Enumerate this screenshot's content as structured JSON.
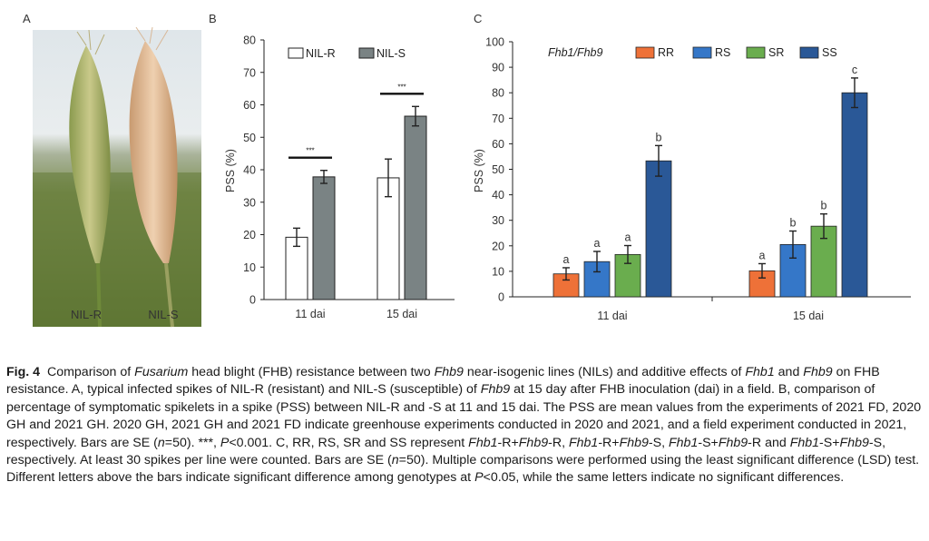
{
  "panel_a": {
    "label": "A",
    "left_label": "NIL-R",
    "right_label": "NIL-S"
  },
  "chart_data": [
    {
      "panel": "B",
      "type": "bar",
      "ylabel": "PSS (%)",
      "ylim": [
        0,
        80
      ],
      "yticks": [
        0,
        10,
        20,
        30,
        40,
        50,
        60,
        70,
        80
      ],
      "categories": [
        "11 dai",
        "15 dai"
      ],
      "series": [
        {
          "name": "NIL-R",
          "values": [
            19.2,
            37.5
          ],
          "errors": [
            2.8,
            5.8
          ],
          "color": "#ffffff"
        },
        {
          "name": "NIL-S",
          "values": [
            37.8,
            56.5
          ],
          "errors": [
            2.0,
            3.0
          ],
          "color": "#7a8384"
        }
      ],
      "annotations": [
        "***",
        "***"
      ]
    },
    {
      "panel": "C",
      "type": "bar",
      "ylabel": "PSS (%)",
      "ylim": [
        0,
        100
      ],
      "yticks": [
        0,
        10,
        20,
        30,
        40,
        50,
        60,
        70,
        80,
        90,
        100
      ],
      "legend_title": "Fhb1/Fhb9",
      "categories": [
        "11 dai",
        "15 dai"
      ],
      "series": [
        {
          "name": "RR",
          "values": [
            9.0,
            10.2
          ],
          "errors": [
            2.4,
            2.8
          ],
          "letters": [
            "a",
            "a"
          ],
          "color": "#ee7138"
        },
        {
          "name": "RS",
          "values": [
            13.8,
            20.5
          ],
          "errors": [
            4.0,
            5.3
          ],
          "letters": [
            "a",
            "b"
          ],
          "color": "#3577c8"
        },
        {
          "name": "SR",
          "values": [
            16.6,
            27.7
          ],
          "errors": [
            3.5,
            4.8
          ],
          "letters": [
            "a",
            "b"
          ],
          "color": "#6aad4e"
        },
        {
          "name": "SS",
          "values": [
            53.3,
            80.0
          ],
          "errors": [
            6.0,
            5.8
          ],
          "letters": [
            "b",
            "c"
          ],
          "color": "#2a5897"
        }
      ]
    }
  ],
  "caption": {
    "fig_label": "Fig. 4",
    "p1_a": "Comparison of ",
    "p1_i1": "Fusarium",
    "p1_b": " head blight (FHB) resistance between two ",
    "p1_i2": "Fhb9",
    "p1_c": " near-isogenic lines (NILs) and additive effects of ",
    "p1_i3": "Fhb1",
    "p1_d": " and ",
    "p1_i4": "Fhb9",
    "p1_e": " on FHB resistance.  A, typical infected spikes of NIL-R (resistant) and NIL-S (susceptible) of ",
    "p1_i5": "Fhb9",
    "p1_f": " at 15 day after FHB inoculation (dai) in a field.  B, comparison of percentage of symptomatic spikelets in a spike (PSS) between NIL-R and -S at 11 and 15 dai.  The PSS are mean values from the experiments of 2021 FD, 2020 GH and 2021 GH.  2020 GH, 2021 GH and 2021 FD indicate greenhouse experiments conducted in 2020 and 2021, and a field experiment conducted in 2021, respectively.  Bars are SE (",
    "p1_i6": "n",
    "p1_g": "=50).  ***, ",
    "p1_i7": "P",
    "p1_h": "<0.001.  C, RR, RS, SR and SS represent ",
    "p1_i8": "Fhb1",
    "p1_j": "-R+",
    "p1_i9": "Fhb9",
    "p1_k": "-R, ",
    "p1_i10": "Fhb1",
    "p1_l": "-R+",
    "p1_i11": "Fhb9",
    "p1_m": "-S, ",
    "p1_i12": "Fhb1",
    "p1_n": "-S+",
    "p1_i13": "Fhb9",
    "p1_o": "-R and ",
    "p1_i14": "Fhb1",
    "p1_p": "-S+",
    "p1_i15": "Fhb9",
    "p1_q": "-S, respectively.  At least 30 spikes per line were counted.  Bars are SE (",
    "p1_i16": "n",
    "p1_r": "=50).  Multiple comparisons were performed using the least significant difference (LSD) test.  Different letters above the bars indicate significant difference among genotypes at ",
    "p1_i17": "P",
    "p1_s": "<0.05, while the same letters indicate no significant differences."
  }
}
